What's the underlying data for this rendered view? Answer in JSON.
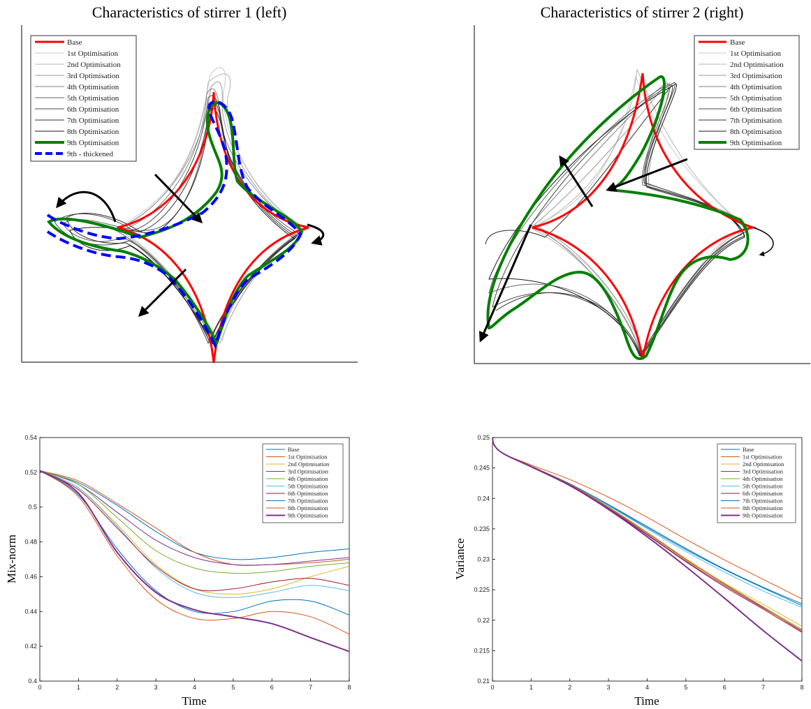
{
  "chart_data": [
    {
      "type": "line",
      "title": "Characteristics of stirrer 1 (left)",
      "legend_placement": "top-left",
      "legend": [
        {
          "name": "Base",
          "color": "#ff0000"
        },
        {
          "name": "1st Optimisation",
          "color": "#c8c8c8"
        },
        {
          "name": "2nd Optimisation",
          "color": "#b4b4b4"
        },
        {
          "name": "3rd Optimisation",
          "color": "#9a9a9a"
        },
        {
          "name": "4th Optimisation",
          "color": "#808080"
        },
        {
          "name": "5th Optimisation",
          "color": "#666666"
        },
        {
          "name": "6th Optimisation",
          "color": "#4a4a4a"
        },
        {
          "name": "7th Optimisation",
          "color": "#303030"
        },
        {
          "name": "8th Optimisation",
          "color": "#1a1a1a"
        },
        {
          "name": "9th Optimisation",
          "color": "#008000"
        },
        {
          "name": "9th - thickened",
          "color": "#0000ff"
        }
      ],
      "grid": false
    },
    {
      "type": "line",
      "title": "Characteristics of stirrer 2 (right)",
      "legend_placement": "top-right",
      "legend": [
        {
          "name": "Base",
          "color": "#ff0000"
        },
        {
          "name": "1st Optimisation",
          "color": "#c8c8c8"
        },
        {
          "name": "2nd Optimisation",
          "color": "#b4b4b4"
        },
        {
          "name": "3rd Optimisation",
          "color": "#9a9a9a"
        },
        {
          "name": "4th Optimisation",
          "color": "#808080"
        },
        {
          "name": "5th Optimisation",
          "color": "#666666"
        },
        {
          "name": "6th Optimisation",
          "color": "#4a4a4a"
        },
        {
          "name": "7th Optimisation",
          "color": "#303030"
        },
        {
          "name": "8th Optimisation",
          "color": "#1a1a1a"
        },
        {
          "name": "9th Optimisation",
          "color": "#008000"
        }
      ],
      "grid": false
    },
    {
      "type": "line",
      "xlabel": "Time",
      "ylabel": "Mix-norm",
      "xlim": [
        0,
        8
      ],
      "ylim": [
        0.4,
        0.54
      ],
      "xticks": [
        0,
        1,
        2,
        3,
        4,
        5,
        6,
        7,
        8
      ],
      "yticks": [
        0.4,
        0.42,
        0.44,
        0.46,
        0.48,
        0.5,
        0.52,
        0.54
      ],
      "grid": false,
      "legend_placement": "top-right",
      "x": [
        0,
        1,
        2,
        3,
        4,
        5,
        6,
        7,
        8
      ],
      "series": [
        {
          "name": "Base",
          "color": "#0072bd",
          "values": [
            0.521,
            0.514,
            0.501,
            0.486,
            0.474,
            0.47,
            0.471,
            0.474,
            0.476
          ]
        },
        {
          "name": "1st Optimisation",
          "color": "#d95319",
          "values": [
            0.521,
            0.515,
            0.502,
            0.488,
            0.474,
            0.467,
            0.467,
            0.468,
            0.47
          ]
        },
        {
          "name": "2nd Optimisation",
          "color": "#edb120",
          "values": [
            0.521,
            0.511,
            0.49,
            0.467,
            0.453,
            0.45,
            0.453,
            0.46,
            0.466
          ]
        },
        {
          "name": "3rd Optimisation",
          "color": "#7e2f8e",
          "values": [
            0.521,
            0.513,
            0.497,
            0.481,
            0.471,
            0.467,
            0.467,
            0.469,
            0.471
          ]
        },
        {
          "name": "4th Optimisation",
          "color": "#77ac30",
          "values": [
            0.521,
            0.513,
            0.494,
            0.475,
            0.465,
            0.462,
            0.463,
            0.466,
            0.468
          ]
        },
        {
          "name": "5th Optimisation",
          "color": "#4dbeee",
          "values": [
            0.521,
            0.511,
            0.489,
            0.465,
            0.451,
            0.448,
            0.451,
            0.455,
            0.452
          ]
        },
        {
          "name": "6th Optimisation",
          "color": "#a2142f",
          "values": [
            0.521,
            0.51,
            0.488,
            0.466,
            0.453,
            0.453,
            0.457,
            0.459,
            0.455
          ]
        },
        {
          "name": "7th Optimisation",
          "color": "#0072bd",
          "values": [
            0.521,
            0.507,
            0.476,
            0.452,
            0.44,
            0.44,
            0.446,
            0.446,
            0.438
          ]
        },
        {
          "name": "8th Optimisation",
          "color": "#d95319",
          "values": [
            0.521,
            0.506,
            0.472,
            0.447,
            0.436,
            0.436,
            0.44,
            0.437,
            0.427
          ]
        },
        {
          "name": "9th Optimisation",
          "color": "#7e2f8e",
          "values": [
            0.521,
            0.508,
            0.474,
            0.451,
            0.441,
            0.437,
            0.433,
            0.425,
            0.417
          ]
        }
      ]
    },
    {
      "type": "line",
      "xlabel": "Time",
      "ylabel": "Variance",
      "xlim": [
        0,
        8
      ],
      "ylim": [
        0.21,
        0.25
      ],
      "xticks": [
        0,
        1,
        2,
        3,
        4,
        5,
        6,
        7,
        8
      ],
      "yticks": [
        0.21,
        0.215,
        0.22,
        0.225,
        0.23,
        0.235,
        0.24,
        0.245,
        0.25
      ],
      "grid": false,
      "legend_placement": "top-right",
      "x": [
        0,
        0.05,
        0.3,
        1,
        2,
        3,
        4,
        5,
        6,
        7,
        8
      ],
      "series": [
        {
          "name": "Base",
          "color": "#0072bd",
          "values": [
            0.25,
            0.2487,
            0.2473,
            0.2453,
            0.2424,
            0.2389,
            0.2352,
            0.2316,
            0.2283,
            0.2253,
            0.2224
          ]
        },
        {
          "name": "1st Optimisation",
          "color": "#d95319",
          "values": [
            0.25,
            0.2487,
            0.2473,
            0.2455,
            0.2431,
            0.2402,
            0.2369,
            0.2333,
            0.2299,
            0.2267,
            0.2235
          ]
        },
        {
          "name": "2nd Optimisation",
          "color": "#edb120",
          "values": [
            0.25,
            0.2487,
            0.2473,
            0.2453,
            0.2423,
            0.2386,
            0.2344,
            0.2301,
            0.2261,
            0.2226,
            0.219
          ]
        },
        {
          "name": "3rd Optimisation",
          "color": "#7e2f8e",
          "values": [
            0.25,
            0.2487,
            0.2473,
            0.2453,
            0.2422,
            0.2384,
            0.2341,
            0.2297,
            0.2257,
            0.222,
            0.2183
          ]
        },
        {
          "name": "4th Optimisation",
          "color": "#77ac30",
          "values": [
            0.25,
            0.2487,
            0.2473,
            0.2453,
            0.2423,
            0.2385,
            0.2343,
            0.2299,
            0.226,
            0.2222,
            0.2185
          ]
        },
        {
          "name": "5th Optimisation",
          "color": "#4dbeee",
          "values": [
            0.25,
            0.2487,
            0.2473,
            0.2453,
            0.2424,
            0.2388,
            0.235,
            0.2313,
            0.2279,
            0.2248,
            0.2221
          ]
        },
        {
          "name": "6th Optimisation",
          "color": "#a2142f",
          "values": [
            0.25,
            0.2487,
            0.2473,
            0.2453,
            0.2422,
            0.2383,
            0.234,
            0.2296,
            0.2255,
            0.2218,
            0.218
          ]
        },
        {
          "name": "7th Optimisation",
          "color": "#0072bd",
          "values": [
            0.25,
            0.2487,
            0.2473,
            0.2453,
            0.2424,
            0.239,
            0.2354,
            0.2318,
            0.2284,
            0.2254,
            0.2227
          ]
        },
        {
          "name": "8th Optimisation",
          "color": "#d95319",
          "values": [
            0.25,
            0.2487,
            0.2473,
            0.2453,
            0.2423,
            0.2386,
            0.2344,
            0.23,
            0.2259,
            0.2221,
            0.2181
          ]
        },
        {
          "name": "9th Optimisation",
          "color": "#7e2f8e",
          "values": [
            0.25,
            0.2487,
            0.2473,
            0.2452,
            0.2421,
            0.2382,
            0.2337,
            0.2288,
            0.2236,
            0.2183,
            0.2133
          ]
        }
      ]
    }
  ]
}
